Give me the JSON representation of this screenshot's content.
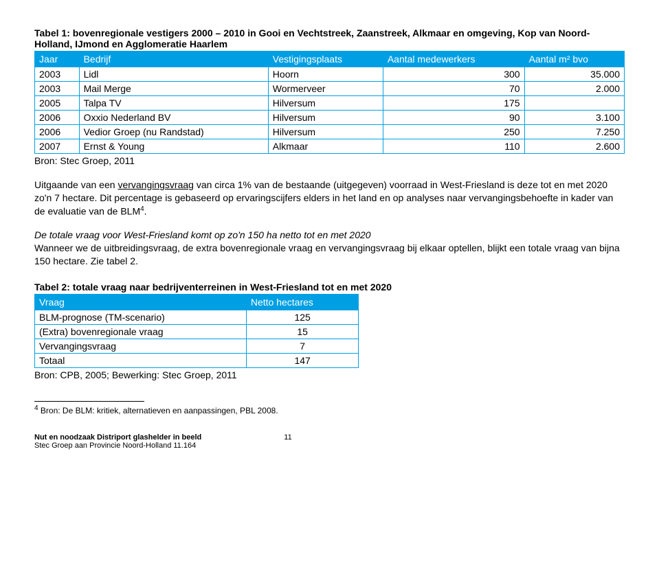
{
  "table1": {
    "title": "Tabel 1: bovenregionale vestigers 2000 – 2010 in Gooi en Vechtstreek, Zaanstreek, Alkmaar en omgeving, Kop van Noord-Holland, IJmond en Agglomeratie Haarlem",
    "headers": [
      "Jaar",
      "Bedrijf",
      "Vestigingsplaats",
      "Aantal medewerkers",
      "Aantal m² bvo"
    ],
    "rows": [
      [
        "2003",
        "Lidl",
        "Hoorn",
        "300",
        "35.000"
      ],
      [
        "2003",
        "Mail Merge",
        "Wormerveer",
        "70",
        "2.000"
      ],
      [
        "2005",
        "Talpa TV",
        "Hilversum",
        "175",
        ""
      ],
      [
        "2006",
        "Oxxio Nederland BV",
        "Hilversum",
        "90",
        "3.100"
      ],
      [
        "2006",
        "Vedior Groep (nu Randstad)",
        "Hilversum",
        "250",
        "7.250"
      ],
      [
        "2007",
        "Ernst & Young",
        "Alkmaar",
        "110",
        "2.600"
      ]
    ],
    "source": "Bron: Stec Groep, 2011"
  },
  "para1": {
    "pre": "Uitgaande van een ",
    "underlined": "vervangingsvraag",
    "post": " van circa 1% van de bestaande (uitgegeven) voorraad in West-Friesland is deze tot en met 2020 zo'n 7 hectare. Dit percentage is gebaseerd op ervaringscijfers elders in het land en op analyses naar vervangingsbehoefte in kader van de evaluatie van de BLM",
    "sup": "4",
    "end": "."
  },
  "para2": {
    "italic": "De totale vraag voor West-Friesland komt op zo'n 150 ha netto tot en met 2020",
    "rest": "Wanneer we de uitbreidingsvraag, de extra bovenregionale vraag en vervangingsvraag bij elkaar optellen, blijkt een totale vraag van bijna 150 hectare. Zie tabel 2."
  },
  "table2": {
    "title": "Tabel 2: totale vraag naar bedrijventerreinen in West-Friesland tot en met 2020",
    "headers": [
      "Vraag",
      "Netto hectares"
    ],
    "rows": [
      [
        "BLM-prognose (TM-scenario)",
        "125"
      ],
      [
        "(Extra) bovenregionale vraag",
        "15"
      ],
      [
        "Vervangingsvraag",
        "7"
      ],
      [
        "Totaal",
        "147"
      ]
    ],
    "source": "Bron: CPB, 2005; Bewerking: Stec Groep, 2011"
  },
  "footnote": {
    "sup": "4",
    "text": " Bron: De BLM: kritiek, alternatieven en aanpassingen, PBL 2008."
  },
  "footer": {
    "line1": "Nut en noodzaak Distriport glashelder in beeld",
    "line2": "Stec Groep aan Provincie Noord-Holland 11.164",
    "page": "11"
  },
  "styling": {
    "header_bg": "#009fe3",
    "header_text": "#ffffff",
    "border_color": "#009fe3",
    "body_font": "Arial",
    "body_fontsize": 14,
    "footnote_fontsize": 12,
    "footer_fontsize": 11
  }
}
